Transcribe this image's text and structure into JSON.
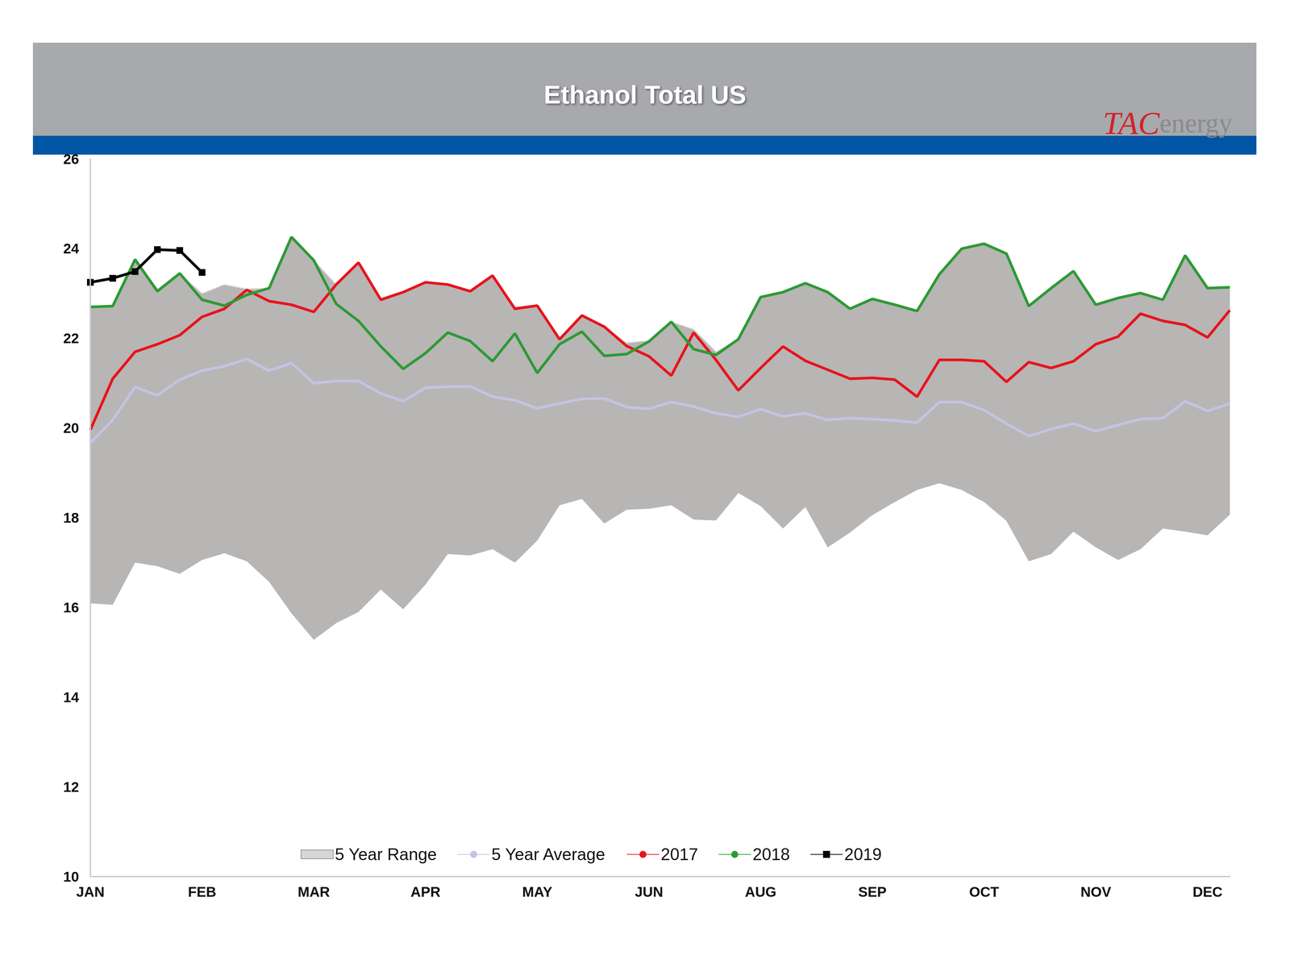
{
  "chart_data": {
    "type": "line",
    "title": "Ethanol Total US",
    "logo": [
      "TAC",
      "energy"
    ],
    "categories": [
      "JAN",
      null,
      null,
      null,
      null,
      "FEB",
      null,
      null,
      null,
      null,
      "MAR",
      null,
      null,
      null,
      null,
      "APR",
      null,
      null,
      null,
      null,
      "MAY",
      null,
      null,
      null,
      null,
      "JUN",
      null,
      null,
      null,
      null,
      "AUG",
      null,
      null,
      null,
      null,
      "SEP",
      null,
      null,
      null,
      null,
      "OCT",
      null,
      null,
      null,
      null,
      "NOV",
      null,
      null,
      null,
      null,
      "DEC",
      null
    ],
    "ylim": [
      10,
      26
    ],
    "yticks": [
      10,
      12,
      14,
      16,
      18,
      20,
      22,
      24,
      26
    ],
    "grid": false,
    "legend": "bottom",
    "range": {
      "name": "5 Year Range",
      "color": "#b8b5b5",
      "low": [
        16.09,
        16.06,
        17.0,
        16.92,
        16.75,
        17.06,
        17.21,
        17.03,
        16.57,
        15.87,
        15.28,
        15.65,
        15.9,
        16.4,
        15.96,
        16.51,
        17.19,
        17.16,
        17.3,
        17.0,
        17.49,
        18.28,
        18.42,
        17.87,
        18.18,
        18.2,
        18.28,
        17.96,
        17.94,
        18.55,
        18.26,
        17.76,
        18.24,
        17.34,
        17.67,
        18.06,
        18.35,
        18.62,
        18.77,
        18.62,
        18.35,
        17.93,
        17.03,
        17.19,
        17.69,
        17.34,
        17.06,
        17.3,
        17.76,
        17.69,
        17.61,
        18.07
      ],
      "high": [
        22.7,
        22.72,
        23.76,
        23.1,
        23.45,
        23.0,
        23.2,
        23.1,
        23.12,
        24.26,
        23.74,
        23.2,
        23.69,
        22.9,
        23.05,
        23.25,
        23.2,
        23.05,
        23.4,
        22.7,
        22.75,
        22.0,
        22.51,
        22.26,
        21.9,
        21.95,
        22.37,
        22.2,
        21.7,
        21.98,
        22.92,
        23.03,
        23.23,
        23.03,
        22.66,
        22.88,
        22.75,
        22.61,
        23.43,
        24.0,
        24.11,
        23.89,
        22.72,
        23.12,
        23.5,
        22.75,
        22.9,
        23.01,
        22.86,
        23.85,
        23.12,
        23.14
      ]
    },
    "series": [
      {
        "name": "5 Year Average",
        "color": "#c3c3e3",
        "marker": "none",
        "values": [
          19.67,
          20.18,
          20.92,
          20.73,
          21.08,
          21.28,
          21.38,
          21.54,
          21.28,
          21.45,
          21.0,
          21.05,
          21.05,
          20.77,
          20.6,
          20.9,
          20.92,
          20.93,
          20.7,
          20.62,
          20.44,
          20.55,
          20.65,
          20.66,
          20.47,
          20.43,
          20.58,
          20.48,
          20.33,
          20.25,
          20.42,
          20.26,
          20.33,
          20.18,
          20.22,
          20.2,
          20.17,
          20.12,
          20.58,
          20.58,
          20.4,
          20.1,
          19.82,
          19.98,
          20.1,
          19.93,
          20.07,
          20.2,
          20.22,
          20.6,
          20.38,
          20.55
        ]
      },
      {
        "name": "2017",
        "color": "#e8141b",
        "marker": "none",
        "values": [
          19.96,
          21.1,
          21.7,
          21.87,
          22.07,
          22.48,
          22.66,
          23.08,
          22.83,
          22.75,
          22.59,
          23.2,
          23.69,
          22.86,
          23.03,
          23.25,
          23.2,
          23.05,
          23.4,
          22.66,
          22.73,
          21.98,
          22.51,
          22.26,
          21.83,
          21.6,
          21.17,
          22.13,
          21.52,
          20.84,
          21.34,
          21.82,
          21.5,
          21.3,
          21.1,
          21.12,
          21.08,
          20.7,
          21.52,
          21.52,
          21.49,
          21.03,
          21.47,
          21.34,
          21.49,
          21.87,
          22.04,
          22.55,
          22.39,
          22.3,
          22.02,
          22.63
        ]
      },
      {
        "name": "2018",
        "color": "#2e9a35",
        "marker": "none",
        "values": [
          22.7,
          22.72,
          23.76,
          23.05,
          23.45,
          22.86,
          22.73,
          22.97,
          23.12,
          24.26,
          23.74,
          22.77,
          22.39,
          21.82,
          21.32,
          21.67,
          22.13,
          21.94,
          21.49,
          22.11,
          21.23,
          21.87,
          22.15,
          21.61,
          21.65,
          21.93,
          22.37,
          21.76,
          21.63,
          21.98,
          22.92,
          23.03,
          23.23,
          23.03,
          22.66,
          22.88,
          22.75,
          22.61,
          23.43,
          24.0,
          24.11,
          23.89,
          22.72,
          23.12,
          23.5,
          22.75,
          22.9,
          23.01,
          22.86,
          23.85,
          23.12,
          23.14
        ]
      },
      {
        "name": "2019",
        "color": "#000000",
        "marker": "square",
        "values": [
          23.25,
          23.34,
          23.49,
          23.98,
          23.96,
          23.47,
          null,
          null,
          null,
          null,
          null,
          null,
          null,
          null,
          null,
          null,
          null,
          null,
          null,
          null,
          null,
          null,
          null,
          null,
          null,
          null,
          null,
          null,
          null,
          null,
          null,
          null,
          null,
          null,
          null,
          null,
          null,
          null,
          null,
          null,
          null,
          null,
          null,
          null,
          null,
          null,
          null,
          null,
          null,
          null,
          null,
          null
        ]
      }
    ]
  }
}
